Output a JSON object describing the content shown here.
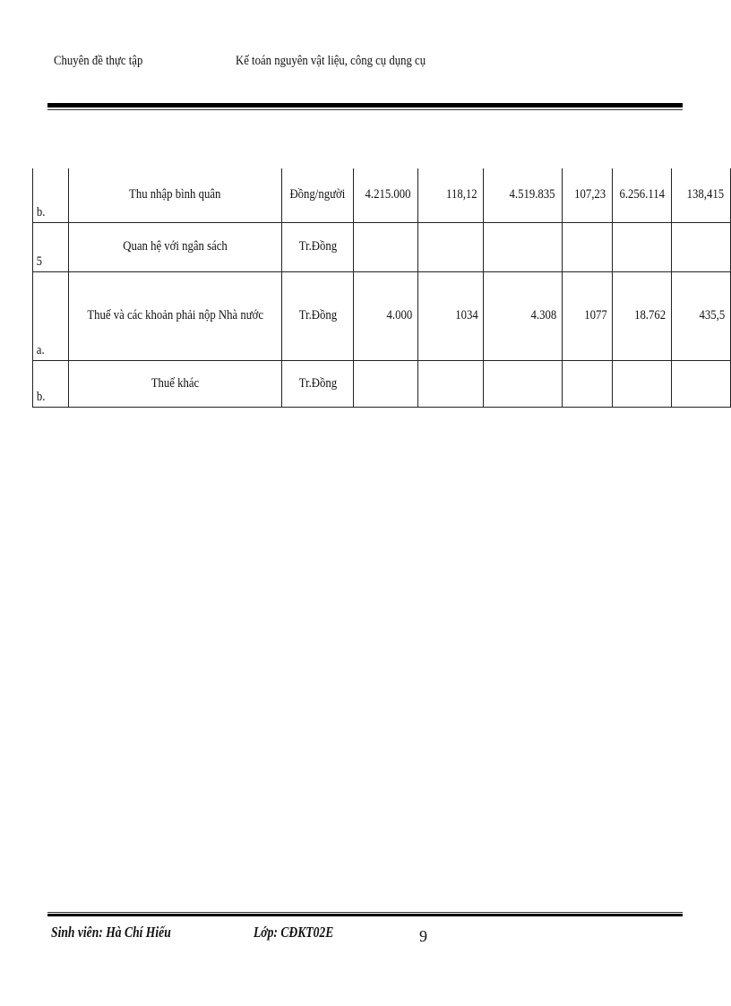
{
  "header": {
    "left": "Chuyên đề thực tập",
    "title": "Kế toán nguyên vật liệu, công cụ dụng cụ"
  },
  "table": {
    "rows": [
      {
        "idx": "b.",
        "label": "Thu nhập bình quân",
        "unit": "Đồng/người",
        "v1": "4.215.000",
        "v2": "118,12",
        "v3": "4.519.835",
        "v4": "107,23",
        "v5": "6.256.114",
        "v6": "138,415"
      },
      {
        "idx": "5",
        "label": "Quan hệ với ngân sách",
        "unit": "Tr.Đồng",
        "v1": "",
        "v2": "",
        "v3": "",
        "v4": "",
        "v5": "",
        "v6": ""
      },
      {
        "idx": "a.",
        "label": "Thuế và các khoản phải nộp Nhà nước",
        "unit": "Tr.Đồng",
        "v1": "4.000",
        "v2": "1034",
        "v3": "4.308",
        "v4": "1077",
        "v5": "18.762",
        "v6": "435,5"
      },
      {
        "idx": "b.",
        "label": "Thuế khác",
        "unit": "Tr.Đồng",
        "v1": "",
        "v2": "",
        "v3": "",
        "v4": "",
        "v5": "",
        "v6": ""
      }
    ]
  },
  "footer": {
    "student": "Sinh viên: Hà Chí Hiếu",
    "class": "Lớp: CĐKT02E",
    "page_number": "9"
  }
}
